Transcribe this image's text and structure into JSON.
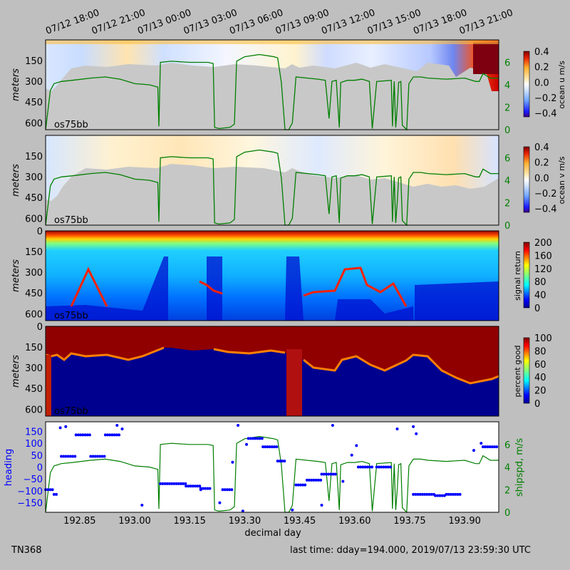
{
  "footer": {
    "cruise": "TN368",
    "last_time": "last time: dday=194.000,  2019/07/13 23:59:30 UTC"
  },
  "top_time_ticks": [
    "07/12 18:00",
    "07/12 21:00",
    "07/13 00:00",
    "07/13 03:00",
    "07/13 06:00",
    "07/13 09:00",
    "07/13 12:00",
    "07/13 15:00",
    "07/13 18:00",
    "07/13 21:00"
  ],
  "colors": {
    "background": "#bfbfbf",
    "no_data": "#c8c8c8",
    "ship_speed": "#007f00",
    "heading": "#0000ff"
  },
  "chart_data": [
    {
      "type": "heatmap",
      "instrument_label": "os75bb",
      "ylabel": "meters",
      "ylim": [
        650,
        0
      ],
      "yticks": [
        "150",
        "300",
        "450",
        "600"
      ],
      "colorbar": {
        "label": "ocean u m/s",
        "ticks": [
          "0.4",
          "0.2",
          "0.0",
          "−0.2",
          "−0.4"
        ],
        "range": [
          -0.45,
          0.4
        ],
        "colormap": "blue-white-red"
      },
      "right_axis": {
        "ticks": [
          "6",
          "4",
          "2",
          "0"
        ],
        "range": [
          0,
          8
        ]
      }
    },
    {
      "type": "heatmap",
      "instrument_label": "os75bb",
      "ylabel": "meters",
      "ylim": [
        650,
        0
      ],
      "yticks": [
        "150",
        "300",
        "450",
        "600"
      ],
      "colorbar": {
        "label": "ocean v m/s",
        "ticks": [
          "0.4",
          "0.2",
          "0.0",
          "−0.2",
          "−0.4"
        ],
        "range": [
          -0.45,
          0.4
        ],
        "colormap": "blue-white-red"
      },
      "right_axis": {
        "ticks": [
          "6",
          "4",
          "2",
          "0"
        ],
        "range": [
          0,
          8
        ]
      }
    },
    {
      "type": "heatmap",
      "instrument_label": "os75bb",
      "ylabel": "meters",
      "ylim": [
        650,
        0
      ],
      "yticks": [
        "0",
        "150",
        "300",
        "450",
        "600"
      ],
      "colorbar": {
        "label": "signal return",
        "ticks": [
          "200",
          "160",
          "120",
          "80",
          "40",
          "0"
        ],
        "range": [
          0,
          200
        ],
        "colormap": "jet"
      }
    },
    {
      "type": "heatmap",
      "instrument_label": "os75bb",
      "ylabel": "meters",
      "ylim": [
        650,
        0
      ],
      "yticks": [
        "0",
        "150",
        "300",
        "450",
        "600"
      ],
      "colorbar": {
        "label": "percent good",
        "ticks": [
          "100",
          "80",
          "60",
          "40",
          "20",
          "0"
        ],
        "range": [
          0,
          100
        ],
        "colormap": "jet"
      }
    },
    {
      "type": "line",
      "xlabel": "decimal day",
      "xlim": [
        192.757,
        193.993
      ],
      "xticks": [
        "192.85",
        "193.00",
        "193.15",
        "193.30",
        "193.45",
        "193.60",
        "193.75",
        "193.90"
      ],
      "left_axis": {
        "label": "heading",
        "ticks": [
          "150",
          "100",
          "50",
          "0",
          "−50",
          "−100",
          "−150"
        ],
        "range": [
          -190,
          190
        ]
      },
      "right_axis": {
        "label": "shipspd, m/s",
        "ticks": [
          "6",
          "4",
          "2",
          "0"
        ],
        "range": [
          0,
          8
        ]
      },
      "ship_speed": {
        "x": [
          192.757,
          192.77,
          192.78,
          192.8,
          192.83,
          192.88,
          192.92,
          192.96,
          192.99,
          193.0,
          193.04,
          193.063,
          193.066,
          193.07,
          193.1,
          193.15,
          193.2,
          193.214,
          193.218,
          193.23,
          193.26,
          193.272,
          193.278,
          193.3,
          193.34,
          193.38,
          193.39,
          193.4,
          193.41,
          193.42,
          193.43,
          193.44,
          193.5,
          193.52,
          193.53,
          193.538,
          193.55,
          193.558,
          193.562,
          193.58,
          193.6,
          193.62,
          193.64,
          193.648,
          193.66,
          193.7,
          193.703,
          193.708,
          193.712,
          193.716,
          193.72,
          193.726,
          193.73,
          193.742,
          193.748,
          193.76,
          193.78,
          193.8,
          193.85,
          193.9,
          193.93,
          193.94,
          193.95,
          193.97,
          193.993
        ],
        "y": [
          0.0,
          3.5,
          4.1,
          4.3,
          4.4,
          4.6,
          4.7,
          4.5,
          4.2,
          4.1,
          4.0,
          3.8,
          0.3,
          6.0,
          6.1,
          6.0,
          6.0,
          5.9,
          0.2,
          0.1,
          0.2,
          0.5,
          6.1,
          6.5,
          6.7,
          6.5,
          6.4,
          4.2,
          0.0,
          0.0,
          0.6,
          4.7,
          4.5,
          4.4,
          1.0,
          4.3,
          4.4,
          0.2,
          4.2,
          4.4,
          4.4,
          4.5,
          4.3,
          0.1,
          4.3,
          4.4,
          0.3,
          4.3,
          0.2,
          2.0,
          4.2,
          4.3,
          0.4,
          0.0,
          4.1,
          4.7,
          4.7,
          4.6,
          4.5,
          4.6,
          4.3,
          4.3,
          5.0,
          4.6,
          4.6
        ]
      },
      "heading_segments": [
        {
          "x": [
            192.757,
            192.78
          ],
          "y": -95
        },
        {
          "x": [
            192.78,
            192.79
          ],
          "y": -115
        },
        {
          "x": [
            192.8,
            192.84
          ],
          "y": 45
        },
        {
          "x": [
            192.84,
            192.88
          ],
          "y": 135
        },
        {
          "x": [
            192.88,
            192.92
          ],
          "y": 45
        },
        {
          "x": [
            192.92,
            192.96
          ],
          "y": 135
        },
        {
          "x": [
            193.07,
            193.14
          ],
          "y": -70
        },
        {
          "x": [
            193.14,
            193.18
          ],
          "y": -80
        },
        {
          "x": [
            193.18,
            193.21
          ],
          "y": -90
        },
        {
          "x": [
            193.24,
            193.27
          ],
          "y": -95
        },
        {
          "x": [
            193.31,
            193.35
          ],
          "y": 120
        },
        {
          "x": [
            193.35,
            193.39
          ],
          "y": 85
        },
        {
          "x": [
            193.39,
            193.41
          ],
          "y": 25
        },
        {
          "x": [
            193.44,
            193.47
          ],
          "y": -75
        },
        {
          "x": [
            193.47,
            193.51
          ],
          "y": -55
        },
        {
          "x": [
            193.51,
            193.55
          ],
          "y": -30
        },
        {
          "x": [
            193.61,
            193.65
          ],
          "y": 0
        },
        {
          "x": [
            193.66,
            193.7
          ],
          "y": 0
        },
        {
          "x": [
            193.76,
            193.82
          ],
          "y": -115
        },
        {
          "x": [
            193.82,
            193.85
          ],
          "y": -120
        },
        {
          "x": [
            193.85,
            193.89
          ],
          "y": -115
        },
        {
          "x": [
            193.95,
            193.993
          ],
          "y": 85
        }
      ],
      "heading_points": {
        "x": [
          192.797,
          192.812,
          192.952,
          192.966,
          193.02,
          193.18,
          193.232,
          193.267,
          193.282,
          193.295,
          193.305,
          193.4,
          193.43,
          193.51,
          193.54,
          193.568,
          193.592,
          193.605,
          193.716,
          193.76,
          193.768,
          193.925,
          193.945
        ],
        "y": [
          165,
          170,
          175,
          160,
          -160,
          -95,
          -150,
          20,
          175,
          -185,
          95,
          25,
          -180,
          -160,
          175,
          -60,
          50,
          90,
          160,
          170,
          140,
          70,
          100
        ]
      }
    }
  ]
}
